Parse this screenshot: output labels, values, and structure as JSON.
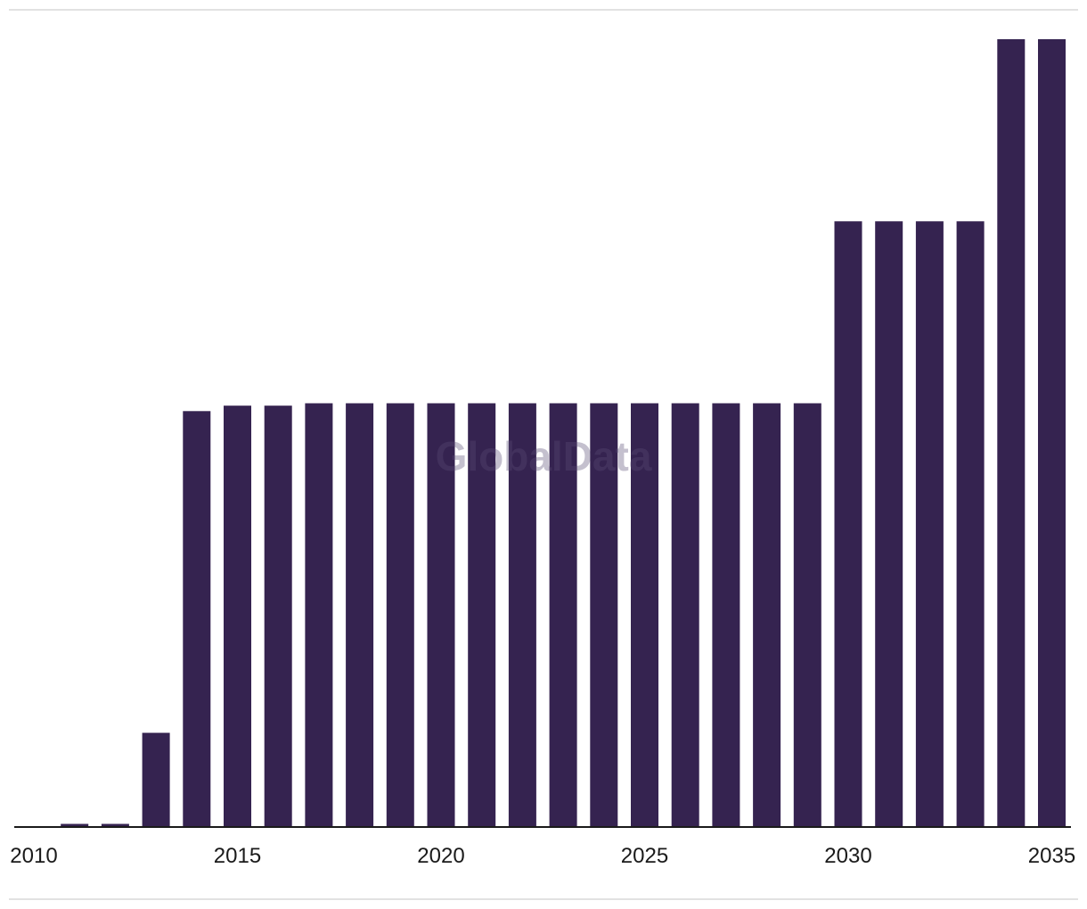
{
  "watermark": "GlobalData",
  "colors": {
    "bar": "#352350",
    "axis": "#1a1a1a",
    "background": "#ffffff",
    "rule": "#e2e2e2"
  },
  "chart_data": {
    "type": "bar",
    "title": "",
    "xlabel": "",
    "ylabel": "",
    "grid": false,
    "legend": "none",
    "x_tick_labels": [
      "2010",
      "2015",
      "2020",
      "2025",
      "2030",
      "2035"
    ],
    "categories": [
      2010,
      2011,
      2012,
      2013,
      2014,
      2015,
      2016,
      2017,
      2018,
      2019,
      2020,
      2021,
      2022,
      2023,
      2024,
      2025,
      2026,
      2027,
      2028,
      2029,
      2030,
      2031,
      2032,
      2033,
      2034,
      2035
    ],
    "values": [
      0,
      0.4,
      0.4,
      12,
      53,
      53.7,
      53.7,
      54,
      54,
      54,
      54,
      54,
      54,
      54,
      54,
      54,
      54,
      54,
      54,
      54,
      77.2,
      77.2,
      77.2,
      77.2,
      100.4,
      100.4
    ],
    "ylim": [
      0,
      100.4
    ]
  }
}
